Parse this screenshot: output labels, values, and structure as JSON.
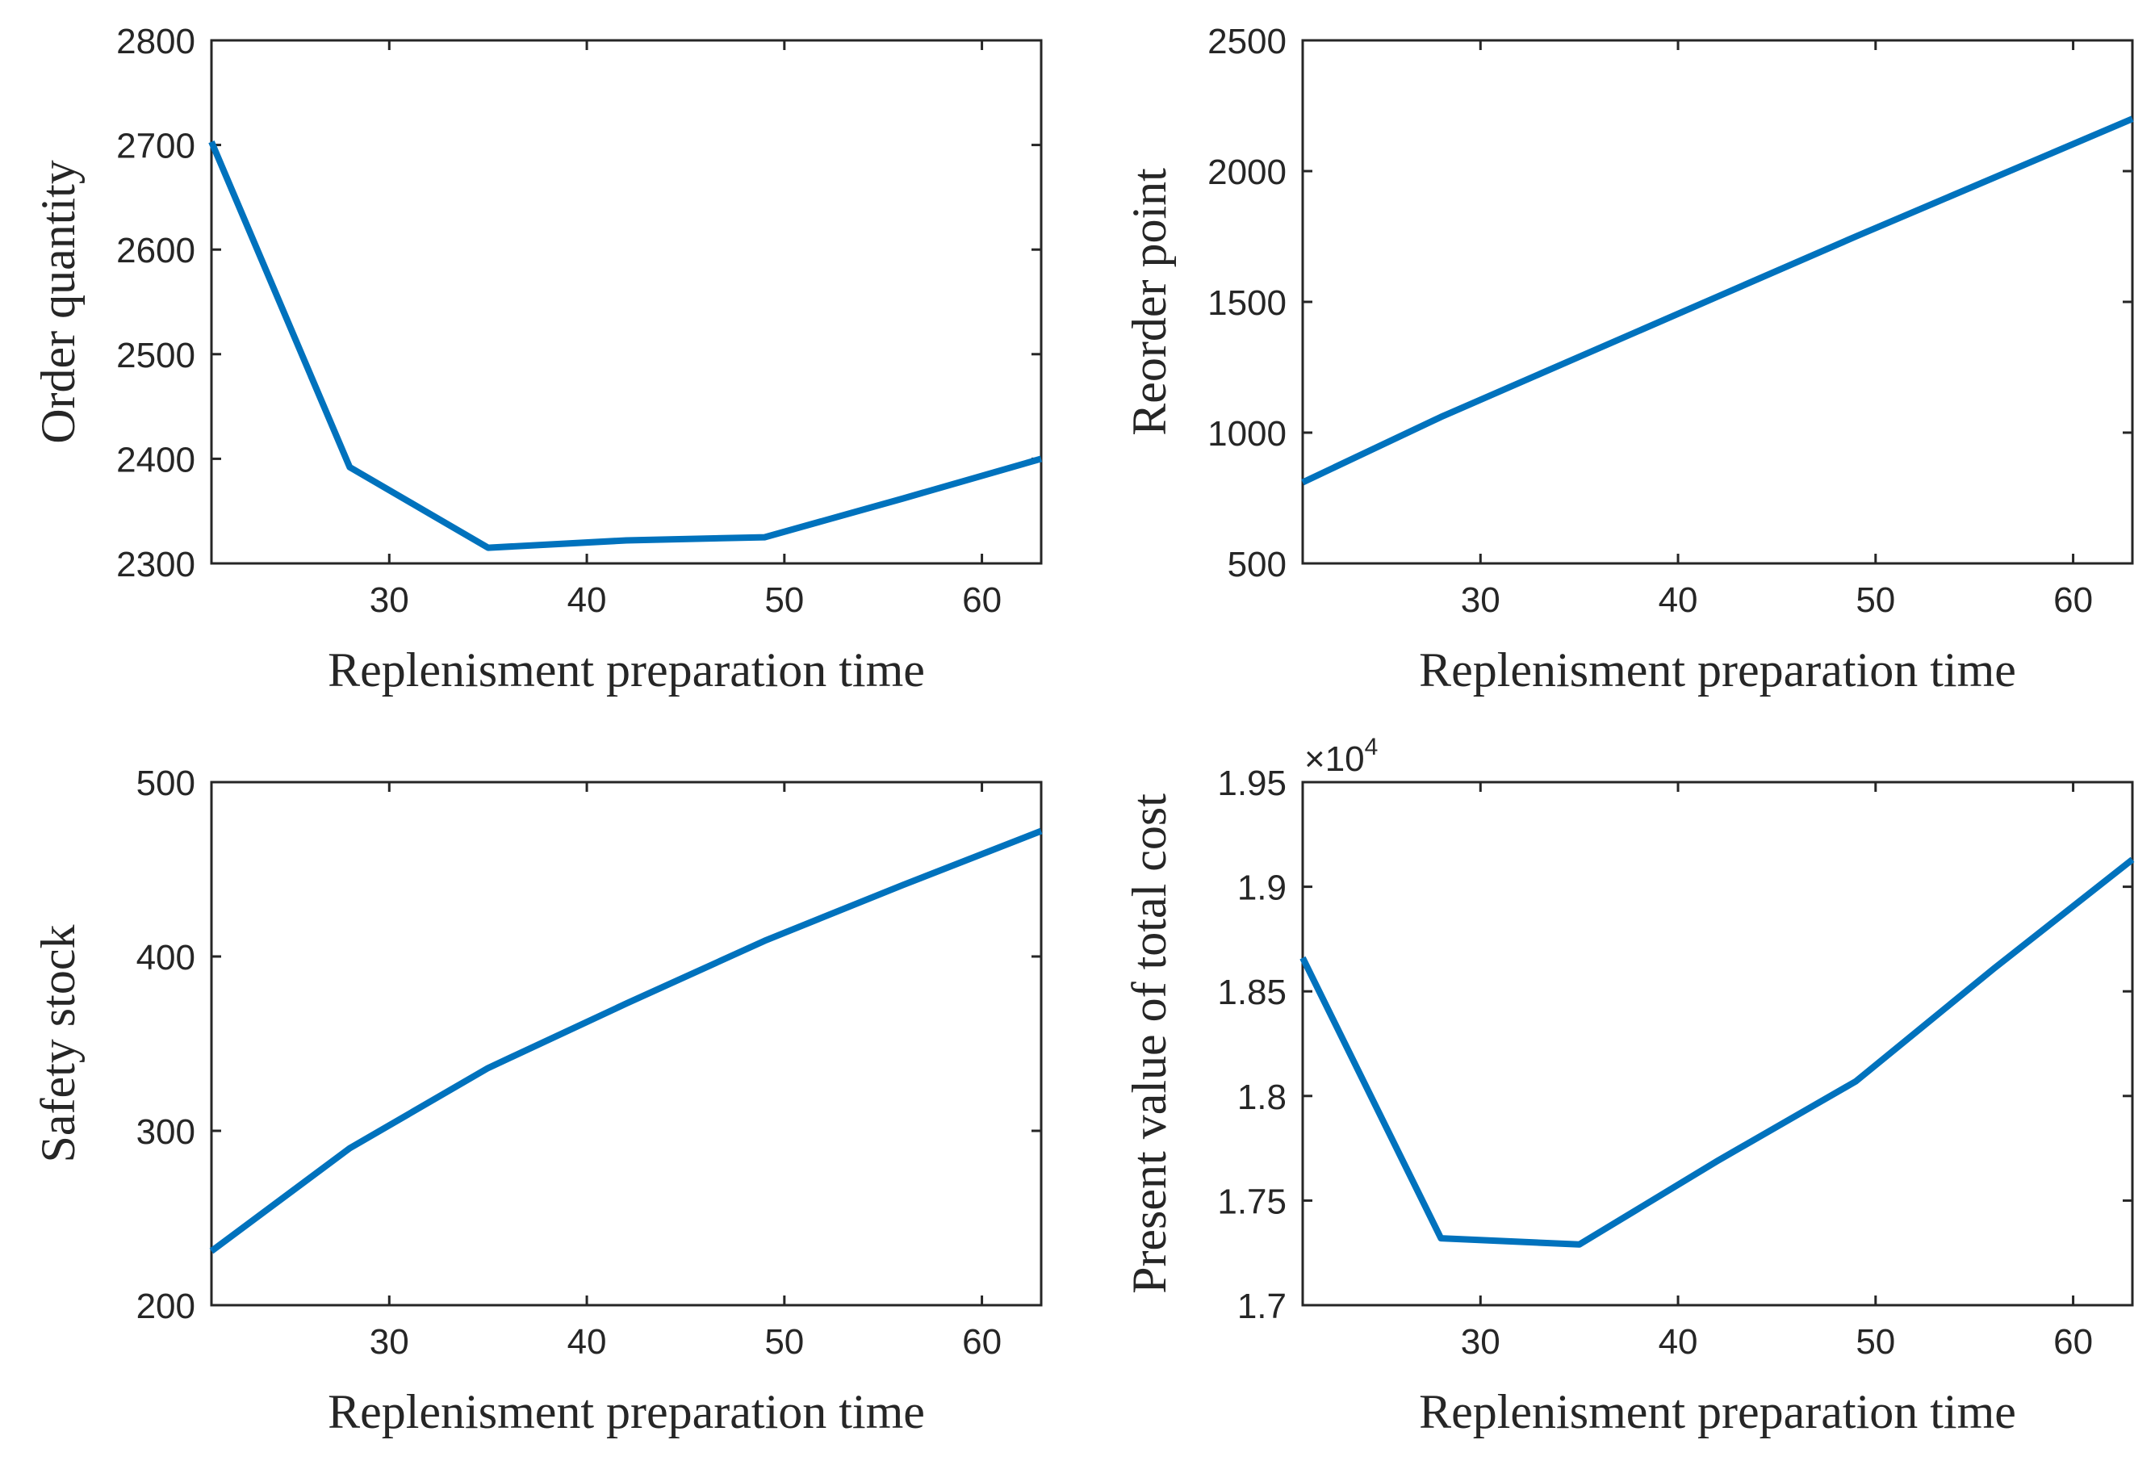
{
  "colors": {
    "series": "#0072BD",
    "axis": "#262626",
    "background": "#ffffff"
  },
  "chart_data": [
    {
      "type": "line",
      "title": "",
      "xlabel": "Replenisment preparation time",
      "ylabel": "Order quantity",
      "xlim": [
        21,
        63
      ],
      "ylim": [
        2300,
        2800
      ],
      "xticks": [
        30,
        40,
        50,
        60
      ],
      "yticks": [
        2300,
        2400,
        2500,
        2600,
        2700,
        2800
      ],
      "ytick_labels": [
        "2300",
        "2400",
        "2500",
        "2600",
        "2700",
        "2800"
      ],
      "multiplier": "",
      "x": [
        21,
        28,
        35,
        42,
        49,
        56,
        63
      ],
      "y": [
        2703,
        2392,
        2315,
        2322,
        2325,
        2362,
        2400
      ]
    },
    {
      "type": "line",
      "title": "",
      "xlabel": "Replenisment preparation time",
      "ylabel": "Reorder point",
      "xlim": [
        21,
        63
      ],
      "ylim": [
        500,
        2500
      ],
      "xticks": [
        30,
        40,
        50,
        60
      ],
      "yticks": [
        500,
        1000,
        1500,
        2000,
        2500
      ],
      "ytick_labels": [
        "500",
        "1000",
        "1500",
        "2000",
        "2500"
      ],
      "multiplier": "",
      "x": [
        21,
        28,
        35,
        42,
        49,
        56,
        63
      ],
      "y": [
        810,
        1060,
        1290,
        1520,
        1750,
        1975,
        2200
      ]
    },
    {
      "type": "line",
      "title": "",
      "xlabel": "Replenisment preparation time",
      "ylabel": "Safety stock",
      "xlim": [
        21,
        63
      ],
      "ylim": [
        200,
        500
      ],
      "xticks": [
        30,
        40,
        50,
        60
      ],
      "yticks": [
        200,
        300,
        400,
        500
      ],
      "ytick_labels": [
        "200",
        "300",
        "400",
        "500"
      ],
      "multiplier": "",
      "x": [
        21,
        28,
        35,
        42,
        49,
        56,
        63
      ],
      "y": [
        231,
        290,
        336,
        373,
        409,
        441,
        472
      ]
    },
    {
      "type": "line",
      "title": "",
      "xlabel": "Replenisment preparation time",
      "ylabel": "Present value of total cost",
      "xlim": [
        21,
        63
      ],
      "ylim": [
        17000,
        19500
      ],
      "xticks": [
        30,
        40,
        50,
        60
      ],
      "yticks": [
        17000,
        17500,
        18000,
        18500,
        19000,
        19500
      ],
      "ytick_labels": [
        "1.7",
        "1.75",
        "1.8",
        "1.85",
        "1.9",
        "1.95"
      ],
      "multiplier": "×10",
      "multiplier_exp": "4",
      "x": [
        21,
        28,
        35,
        42,
        49,
        56,
        63
      ],
      "y": [
        18660,
        17320,
        17290,
        17690,
        18070,
        18610,
        19130
      ]
    }
  ]
}
